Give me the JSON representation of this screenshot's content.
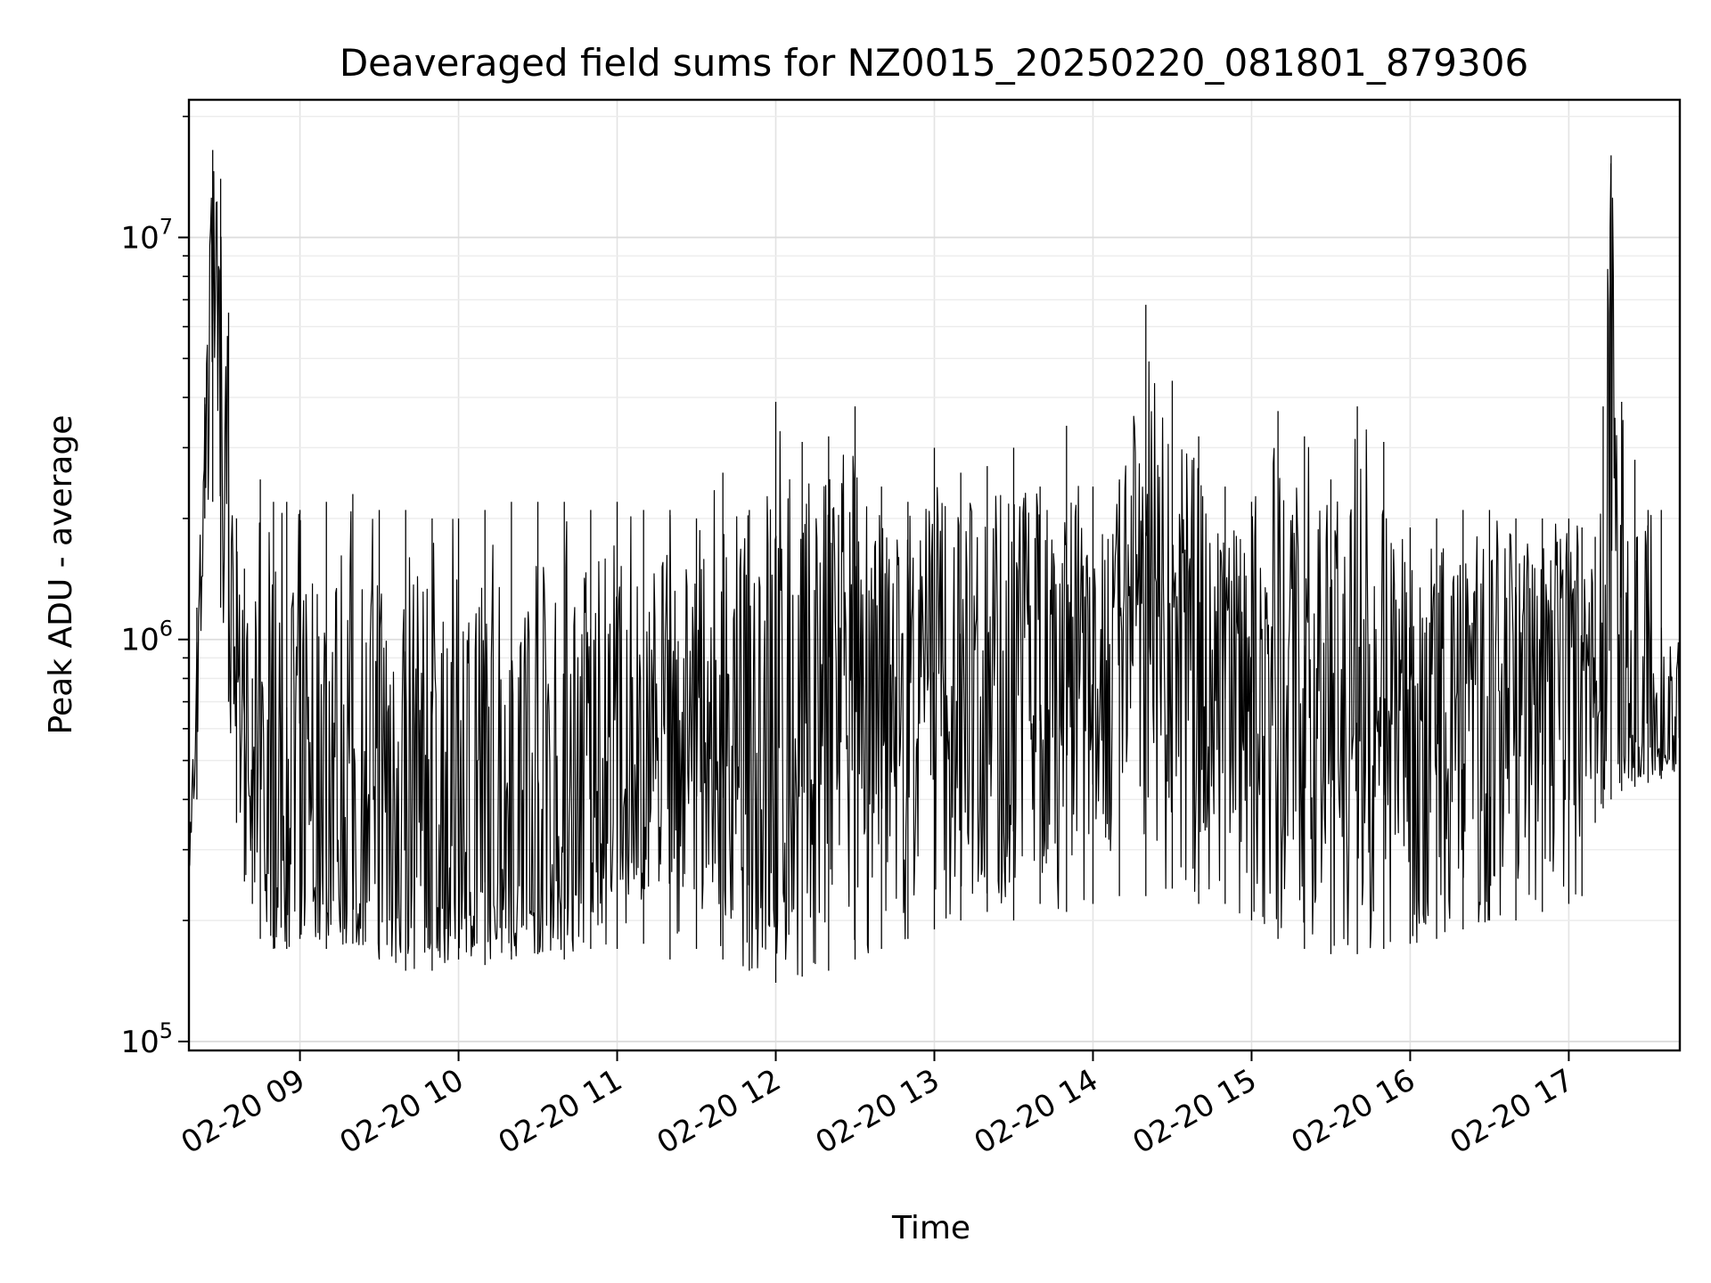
{
  "chart_data": {
    "type": "line",
    "title": "Deaveraged field sums for NZ0015_20250220_081801_879306",
    "xlabel": "Time",
    "ylabel": "Peak ADU - average",
    "yscale": "log",
    "ylim": [
      95000,
      22000000
    ],
    "xlim": [
      "2025-02-20 08:18",
      "2025-02-20 17:42"
    ],
    "grid": true,
    "line_color": "#000000",
    "x_ticks": [
      {
        "t": "2025-02-20 09:00",
        "label": "02-20 09"
      },
      {
        "t": "2025-02-20 10:00",
        "label": "02-20 10"
      },
      {
        "t": "2025-02-20 11:00",
        "label": "02-20 11"
      },
      {
        "t": "2025-02-20 12:00",
        "label": "02-20 12"
      },
      {
        "t": "2025-02-20 13:00",
        "label": "02-20 13"
      },
      {
        "t": "2025-02-20 14:00",
        "label": "02-20 14"
      },
      {
        "t": "2025-02-20 15:00",
        "label": "02-20 15"
      },
      {
        "t": "2025-02-20 16:00",
        "label": "02-20 16"
      },
      {
        "t": "2025-02-20 17:00",
        "label": "02-20 17"
      }
    ],
    "y_ticks": [
      {
        "value": 100000,
        "base": "10",
        "exp": "5"
      },
      {
        "value": 1000000,
        "base": "10",
        "exp": "6"
      },
      {
        "value": 10000000,
        "base": "10",
        "exp": "7"
      }
    ],
    "series": [
      {
        "x": [
          "2025-02-20 08:18",
          "2025-02-20 08:21",
          "2025-02-20 08:24",
          "2025-02-20 08:27",
          "2025-02-20 08:30",
          "2025-02-20 08:33",
          "2025-02-20 08:36",
          "2025-02-20 08:39",
          "2025-02-20 08:42",
          "2025-02-20 08:45",
          "2025-02-20 08:50",
          "2025-02-20 08:55",
          "2025-02-20 09:00",
          "2025-02-20 09:10",
          "2025-02-20 09:20",
          "2025-02-20 09:30",
          "2025-02-20 09:40",
          "2025-02-20 09:50",
          "2025-02-20 10:00",
          "2025-02-20 10:10",
          "2025-02-20 10:20",
          "2025-02-20 10:30",
          "2025-02-20 10:40",
          "2025-02-20 10:50",
          "2025-02-20 11:00",
          "2025-02-20 11:10",
          "2025-02-20 11:20",
          "2025-02-20 11:30",
          "2025-02-20 11:40",
          "2025-02-20 11:50",
          "2025-02-20 12:00",
          "2025-02-20 12:10",
          "2025-02-20 12:20",
          "2025-02-20 12:30",
          "2025-02-20 12:40",
          "2025-02-20 12:50",
          "2025-02-20 13:00",
          "2025-02-20 13:10",
          "2025-02-20 13:20",
          "2025-02-20 13:30",
          "2025-02-20 13:40",
          "2025-02-20 13:50",
          "2025-02-20 14:00",
          "2025-02-20 14:10",
          "2025-02-20 14:20",
          "2025-02-20 14:30",
          "2025-02-20 14:40",
          "2025-02-20 14:50",
          "2025-02-20 15:00",
          "2025-02-20 15:10",
          "2025-02-20 15:20",
          "2025-02-20 15:30",
          "2025-02-20 15:40",
          "2025-02-20 15:50",
          "2025-02-20 16:00",
          "2025-02-20 16:10",
          "2025-02-20 16:20",
          "2025-02-20 16:30",
          "2025-02-20 16:40",
          "2025-02-20 16:50",
          "2025-02-20 17:00",
          "2025-02-20 17:05",
          "2025-02-20 17:10",
          "2025-02-20 17:13",
          "2025-02-20 17:16",
          "2025-02-20 17:20",
          "2025-02-20 17:25",
          "2025-02-20 17:30",
          "2025-02-20 17:35",
          "2025-02-20 17:42"
        ],
        "y": [
          270000,
          600000,
          3000000,
          16500000,
          5500000,
          1800000,
          900000,
          700000,
          400000,
          320000,
          280000,
          300000,
          260000,
          240000,
          230000,
          235000,
          240000,
          230000,
          230000,
          240000,
          250000,
          260000,
          280000,
          300000,
          350000,
          400000,
          450000,
          500000,
          550000,
          600000,
          650000,
          650000,
          700000,
          700000,
          750000,
          750000,
          800000,
          850000,
          900000,
          950000,
          1000000,
          1050000,
          1050000,
          1100000,
          1100000,
          1100000,
          1050000,
          1050000,
          1000000,
          950000,
          900000,
          800000,
          600000,
          500000,
          700000,
          900000,
          1000000,
          1050000,
          1050000,
          1000000,
          950000,
          900000,
          850000,
          900000,
          16000000,
          600000,
          580000,
          550000,
          540000,
          500000
        ],
        "y_low": [
          260000,
          400000,
          2000000,
          2200000,
          1200000,
          700000,
          350000,
          250000,
          220000,
          180000,
          170000,
          170000,
          180000,
          170000,
          175000,
          160000,
          150000,
          150000,
          160000,
          155000,
          160000,
          165000,
          160000,
          170000,
          170000,
          175000,
          160000,
          170000,
          160000,
          150000,
          140000,
          145000,
          150000,
          160000,
          170000,
          180000,
          190000,
          200000,
          210000,
          200000,
          220000,
          210000,
          220000,
          230000,
          230000,
          240000,
          220000,
          220000,
          200000,
          180000,
          170000,
          165000,
          165000,
          170000,
          175000,
          180000,
          190000,
          200000,
          200000,
          210000,
          220000,
          230000,
          350000,
          380000,
          400000,
          420000,
          430000,
          440000,
          450000,
          460000
        ],
        "y_high": [
          300000,
          1200000,
          4000000,
          16500000,
          14000000,
          6500000,
          2000000,
          1500000,
          800000,
          2500000,
          2200000,
          2200000,
          2100000,
          2200000,
          2300000,
          2100000,
          2100000,
          2000000,
          2000000,
          2100000,
          2200000,
          2200000,
          2200000,
          2100000,
          2200000,
          2100000,
          2100000,
          2000000,
          2600000,
          2100000,
          3900000,
          3100000,
          3200000,
          3800000,
          2400000,
          2200000,
          3000000,
          2600000,
          2700000,
          3000000,
          2400000,
          3400000,
          2400000,
          2500000,
          6800000,
          4400000,
          3200000,
          2400000,
          2200000,
          3700000,
          3200000,
          2500000,
          3800000,
          3100000,
          1900000,
          2000000,
          2100000,
          2100000,
          2000000,
          2000000,
          2000000,
          1900000,
          1800000,
          3800000,
          16000000,
          3900000,
          2800000,
          2100000,
          2100000,
          1100000
        ]
      }
    ]
  }
}
